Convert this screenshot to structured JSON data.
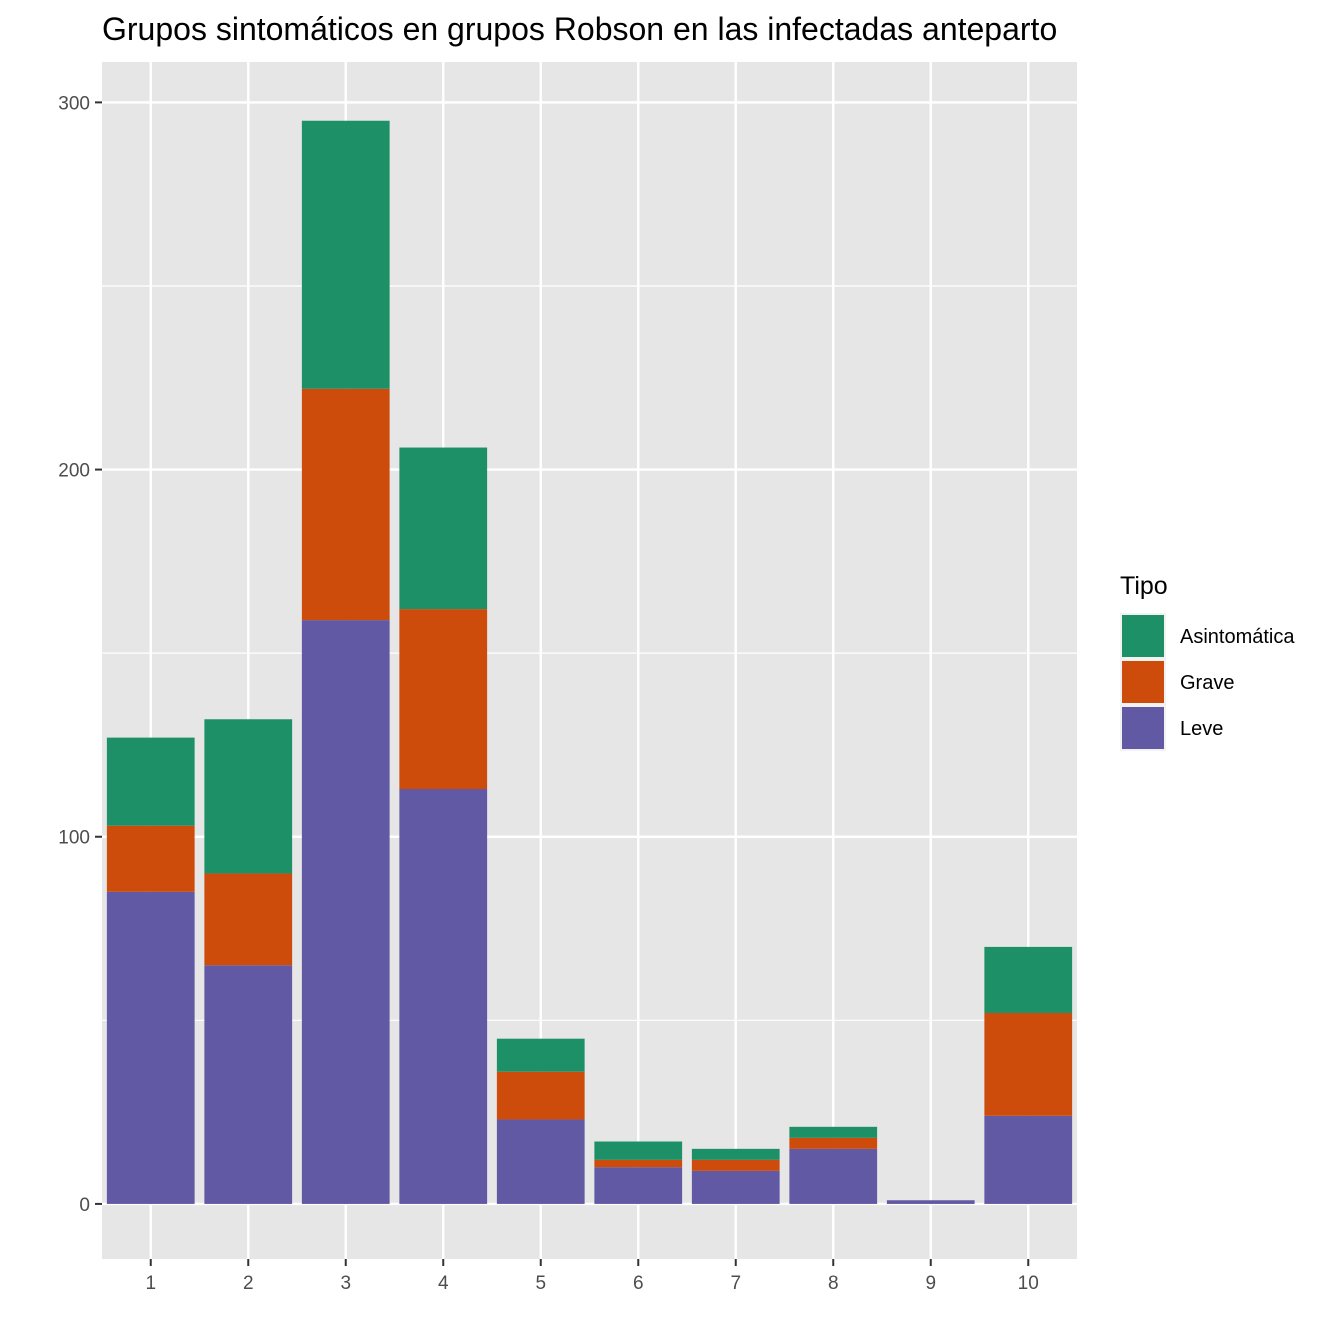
{
  "chart_data": {
    "type": "bar",
    "stacked": true,
    "title": "Grupos sintomáticos en grupos Robson en las infectadas anteparto",
    "xlabel": "",
    "ylabel": "",
    "categories": [
      "1",
      "2",
      "3",
      "4",
      "5",
      "6",
      "7",
      "8",
      "9",
      "10"
    ],
    "ylim": [
      -15,
      311
    ],
    "yticks": [
      0,
      100,
      200,
      300
    ],
    "grid": true,
    "legend": {
      "title": "Tipo",
      "placement": "right",
      "entries": [
        "Asintomática",
        "Grave",
        "Leve"
      ]
    },
    "series": [
      {
        "name": "Leve",
        "color": "#6159A4",
        "values": [
          85,
          65,
          159,
          113,
          23,
          10,
          9,
          15,
          1,
          24
        ]
      },
      {
        "name": "Grave",
        "color": "#CD4C0B",
        "values": [
          18,
          25,
          63,
          49,
          13,
          2,
          3,
          3,
          0,
          28
        ]
      },
      {
        "name": "Asintomática",
        "color": "#1E9068",
        "values": [
          24,
          42,
          73,
          44,
          9,
          5,
          3,
          3,
          0,
          18
        ]
      }
    ],
    "colors": {
      "panel_bg": "#E6E6E6",
      "grid": "#FFFFFF",
      "tick": "#333333"
    }
  }
}
